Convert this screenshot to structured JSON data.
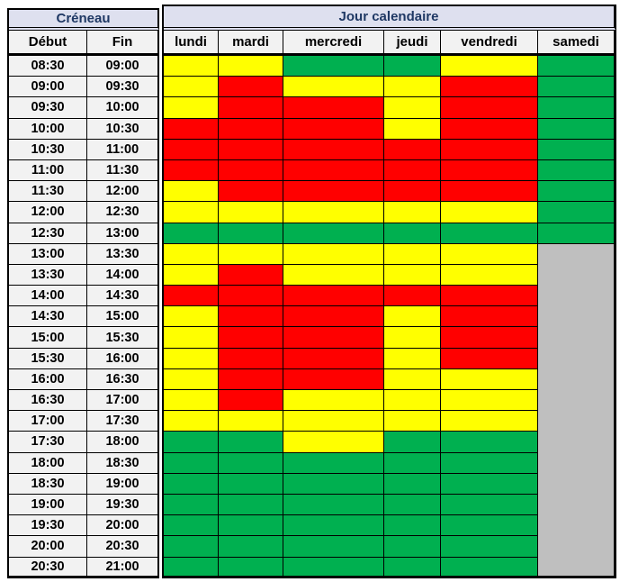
{
  "title_row": {
    "creneau": "Créneau",
    "jour_calendaire": "Jour calendaire"
  },
  "subheader": {
    "debut": "Début",
    "fin": "Fin",
    "days": [
      "lundi",
      "mardi",
      "mercredi",
      "jeudi",
      "vendredi",
      "samedi"
    ]
  },
  "palette": {
    "yellow": "#FFFF00",
    "red": "#FF0000",
    "green": "#00B050",
    "gray": "#BFBFBF",
    "header_bg": "#DEE0EF",
    "header_text": "#1F3864",
    "cell_bg": "#F2F2F2",
    "border": "#000000"
  },
  "schedule": {
    "rows": [
      {
        "debut": "08:30",
        "fin": "09:00",
        "slots": [
          "yellow",
          "yellow",
          "green",
          "green",
          "yellow",
          "green"
        ]
      },
      {
        "debut": "09:00",
        "fin": "09:30",
        "slots": [
          "yellow",
          "red",
          "yellow",
          "yellow",
          "red",
          "green"
        ]
      },
      {
        "debut": "09:30",
        "fin": "10:00",
        "slots": [
          "yellow",
          "red",
          "red",
          "yellow",
          "red",
          "green"
        ]
      },
      {
        "debut": "10:00",
        "fin": "10:30",
        "slots": [
          "red",
          "red",
          "red",
          "yellow",
          "red",
          "green"
        ]
      },
      {
        "debut": "10:30",
        "fin": "11:00",
        "slots": [
          "red",
          "red",
          "red",
          "red",
          "red",
          "green"
        ]
      },
      {
        "debut": "11:00",
        "fin": "11:30",
        "slots": [
          "red",
          "red",
          "red",
          "red",
          "red",
          "green"
        ]
      },
      {
        "debut": "11:30",
        "fin": "12:00",
        "slots": [
          "yellow",
          "red",
          "red",
          "red",
          "red",
          "green"
        ]
      },
      {
        "debut": "12:00",
        "fin": "12:30",
        "slots": [
          "yellow",
          "yellow",
          "yellow",
          "yellow",
          "yellow",
          "green"
        ]
      },
      {
        "debut": "12:30",
        "fin": "13:00",
        "slots": [
          "green",
          "green",
          "green",
          "green",
          "green",
          "green"
        ]
      },
      {
        "debut": "13:00",
        "fin": "13:30",
        "slots": [
          "yellow",
          "yellow",
          "yellow",
          "yellow",
          "yellow",
          "gray"
        ]
      },
      {
        "debut": "13:30",
        "fin": "14:00",
        "slots": [
          "yellow",
          "red",
          "yellow",
          "yellow",
          "yellow",
          "gray"
        ]
      },
      {
        "debut": "14:00",
        "fin": "14:30",
        "slots": [
          "red",
          "red",
          "red",
          "red",
          "red",
          "gray"
        ]
      },
      {
        "debut": "14:30",
        "fin": "15:00",
        "slots": [
          "yellow",
          "red",
          "red",
          "yellow",
          "red",
          "gray"
        ]
      },
      {
        "debut": "15:00",
        "fin": "15:30",
        "slots": [
          "yellow",
          "red",
          "red",
          "yellow",
          "red",
          "gray"
        ]
      },
      {
        "debut": "15:30",
        "fin": "16:00",
        "slots": [
          "yellow",
          "red",
          "red",
          "yellow",
          "red",
          "gray"
        ]
      },
      {
        "debut": "16:00",
        "fin": "16:30",
        "slots": [
          "yellow",
          "red",
          "red",
          "yellow",
          "yellow",
          "gray"
        ]
      },
      {
        "debut": "16:30",
        "fin": "17:00",
        "slots": [
          "yellow",
          "red",
          "yellow",
          "yellow",
          "yellow",
          "gray"
        ]
      },
      {
        "debut": "17:00",
        "fin": "17:30",
        "slots": [
          "yellow",
          "yellow",
          "yellow",
          "yellow",
          "yellow",
          "gray"
        ]
      },
      {
        "debut": "17:30",
        "fin": "18:00",
        "slots": [
          "green",
          "green",
          "yellow",
          "green",
          "green",
          "gray"
        ]
      },
      {
        "debut": "18:00",
        "fin": "18:30",
        "slots": [
          "green",
          "green",
          "green",
          "green",
          "green",
          "gray"
        ]
      },
      {
        "debut": "18:30",
        "fin": "19:00",
        "slots": [
          "green",
          "green",
          "green",
          "green",
          "green",
          "gray"
        ]
      },
      {
        "debut": "19:00",
        "fin": "19:30",
        "slots": [
          "green",
          "green",
          "green",
          "green",
          "green",
          "gray"
        ]
      },
      {
        "debut": "19:30",
        "fin": "20:00",
        "slots": [
          "green",
          "green",
          "green",
          "green",
          "green",
          "gray"
        ]
      },
      {
        "debut": "20:00",
        "fin": "20:30",
        "slots": [
          "green",
          "green",
          "green",
          "green",
          "green",
          "gray"
        ]
      },
      {
        "debut": "20:30",
        "fin": "21:00",
        "slots": [
          "green",
          "green",
          "green",
          "green",
          "green",
          "gray"
        ]
      }
    ]
  }
}
